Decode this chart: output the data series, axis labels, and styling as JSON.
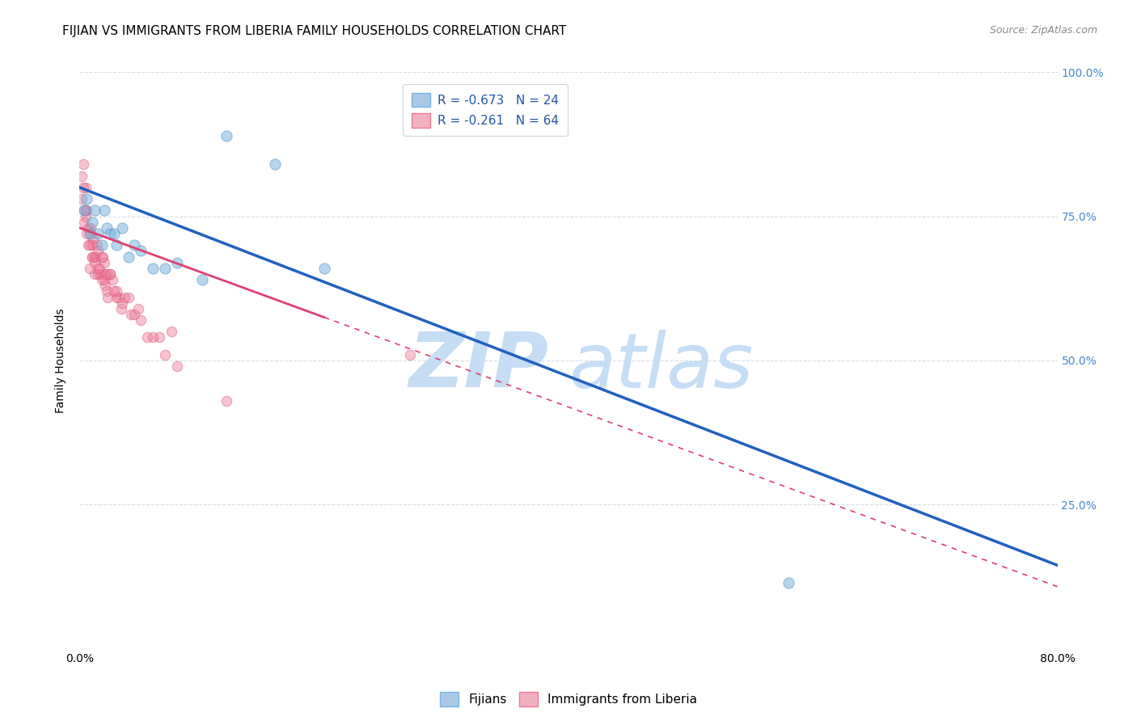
{
  "title": "FIJIAN VS IMMIGRANTS FROM LIBERIA FAMILY HOUSEHOLDS CORRELATION CHART",
  "source": "Source: ZipAtlas.com",
  "ylabel": "Family Households",
  "xmin": 0.0,
  "xmax": 0.8,
  "ymin": 0.0,
  "ymax": 1.0,
  "fijians_scatter": {
    "x": [
      0.004,
      0.006,
      0.008,
      0.01,
      0.012,
      0.015,
      0.018,
      0.02,
      0.022,
      0.025,
      0.028,
      0.03,
      0.035,
      0.04,
      0.045,
      0.05,
      0.06,
      0.07,
      0.08,
      0.1,
      0.12,
      0.16,
      0.2,
      0.58
    ],
    "y": [
      0.76,
      0.78,
      0.72,
      0.74,
      0.76,
      0.72,
      0.7,
      0.76,
      0.73,
      0.72,
      0.72,
      0.7,
      0.73,
      0.68,
      0.7,
      0.69,
      0.66,
      0.66,
      0.67,
      0.64,
      0.89,
      0.84,
      0.66,
      0.115
    ],
    "color": "#7ab4e0",
    "edgecolor": "#5a94c0",
    "alpha": 0.55,
    "size": 90
  },
  "liberia_scatter": {
    "x": [
      0.002,
      0.003,
      0.004,
      0.005,
      0.005,
      0.006,
      0.007,
      0.008,
      0.009,
      0.01,
      0.01,
      0.011,
      0.012,
      0.012,
      0.013,
      0.014,
      0.015,
      0.015,
      0.016,
      0.017,
      0.018,
      0.019,
      0.02,
      0.02,
      0.021,
      0.022,
      0.023,
      0.025,
      0.027,
      0.03,
      0.032,
      0.034,
      0.035,
      0.037,
      0.04,
      0.042,
      0.045,
      0.048,
      0.05,
      0.055,
      0.06,
      0.065,
      0.07,
      0.075,
      0.08,
      0.002,
      0.003,
      0.004,
      0.005,
      0.006,
      0.007,
      0.008,
      0.009,
      0.01,
      0.012,
      0.015,
      0.018,
      0.02,
      0.022,
      0.025,
      0.028,
      0.03,
      0.12,
      0.27
    ],
    "y": [
      0.82,
      0.84,
      0.76,
      0.8,
      0.75,
      0.76,
      0.73,
      0.7,
      0.72,
      0.7,
      0.68,
      0.71,
      0.68,
      0.65,
      0.68,
      0.7,
      0.65,
      0.69,
      0.66,
      0.65,
      0.64,
      0.68,
      0.65,
      0.67,
      0.63,
      0.62,
      0.61,
      0.65,
      0.64,
      0.61,
      0.61,
      0.59,
      0.6,
      0.61,
      0.61,
      0.58,
      0.58,
      0.59,
      0.57,
      0.54,
      0.54,
      0.54,
      0.51,
      0.55,
      0.49,
      0.78,
      0.8,
      0.74,
      0.76,
      0.72,
      0.7,
      0.66,
      0.73,
      0.68,
      0.67,
      0.66,
      0.68,
      0.64,
      0.65,
      0.65,
      0.62,
      0.62,
      0.43,
      0.51
    ],
    "color": "#f07898",
    "edgecolor": "#d05878",
    "alpha": 0.45,
    "size": 80
  },
  "fijian_line": {
    "x_start": 0.0,
    "x_end": 0.8,
    "y_start": 0.8,
    "y_end": 0.145,
    "color": "#2060c0",
    "linewidth": 2.5,
    "linestyle": "solid"
  },
  "liberia_line_solid": {
    "x_start": 0.0,
    "x_end": 0.2,
    "y_start": 0.73,
    "y_end": 0.575,
    "color": "#e04070",
    "linewidth": 2.0,
    "linestyle": "solid"
  },
  "liberia_line_dashed": {
    "x_start": 0.2,
    "x_end": 0.8,
    "y_start": 0.575,
    "y_end": 0.108,
    "color": "#e04070",
    "linewidth": 1.2,
    "linestyle": "dashed"
  },
  "legend_entries": [
    {
      "label": "R = -0.673   N = 24",
      "facecolor": "#a8c8e8",
      "edgecolor": "#7ab4e0"
    },
    {
      "label": "R = -0.261   N = 64",
      "facecolor": "#f0b0c0",
      "edgecolor": "#f07898"
    }
  ],
  "bottom_legend": [
    {
      "label": "Fijians",
      "facecolor": "#a8c8e8",
      "edgecolor": "#7ab4e0"
    },
    {
      "label": "Immigrants from Liberia",
      "facecolor": "#f0b0c0",
      "edgecolor": "#f07898"
    }
  ],
  "watermark_zip": "ZIP",
  "watermark_atlas": "atlas",
  "watermark_color": "#c5ddf5",
  "background_color": "#ffffff",
  "grid_color": "#d5dde8",
  "title_fontsize": 11,
  "axis_label_fontsize": 10,
  "tick_fontsize": 10,
  "right_tick_color": "#4488cc",
  "label_color_blue": "#2255aa"
}
